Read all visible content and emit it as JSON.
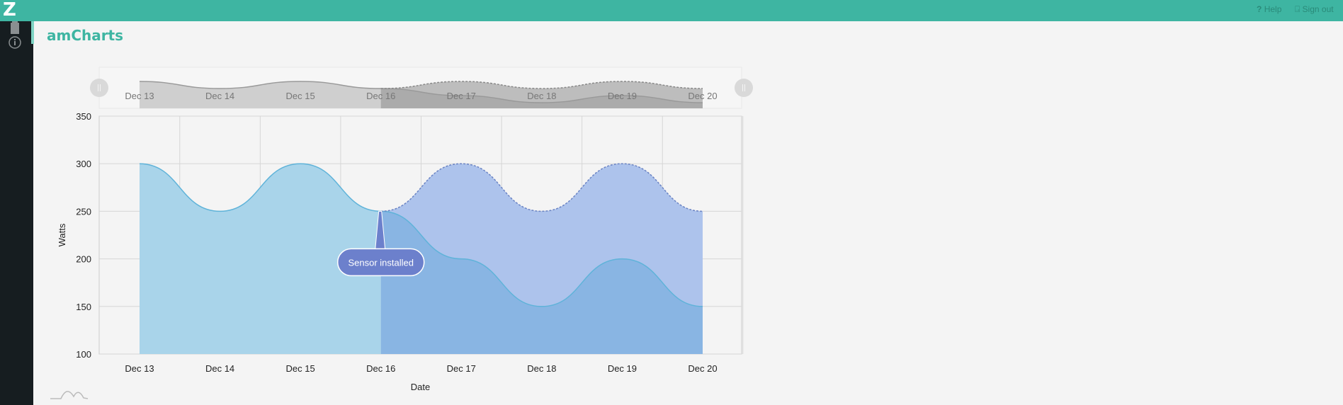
{
  "app": {
    "logo": "Z",
    "title": "amCharts",
    "help_label": "Help",
    "signout_label": "Sign out",
    "sidebar_icons": [
      "building-icon",
      "info-icon"
    ]
  },
  "colors": {
    "topbar": "#3eb5a2",
    "series_before": "#a9d4ea",
    "series_after": "#89b5e3",
    "dashed_series": "#adc3ec",
    "balloon": "#6c80cc"
  },
  "chart_data": {
    "type": "area",
    "xlabel": "Date",
    "ylabel": "Watts",
    "categories": [
      "Dec 13",
      "Dec 14",
      "Dec 15",
      "Dec 16",
      "Dec 17",
      "Dec 18",
      "Dec 19",
      "Dec 20"
    ],
    "ylim": [
      100,
      350
    ],
    "yticks": [
      100,
      150,
      200,
      250,
      300,
      350
    ],
    "grid": true,
    "smoothed": true,
    "series": [
      {
        "values": [
          300,
          250,
          300,
          250,
          200,
          150,
          200,
          150
        ],
        "style": "solid"
      },
      {
        "values": [
          null,
          null,
          null,
          250,
          300,
          250,
          300,
          250
        ],
        "style": "dashed"
      }
    ],
    "annotation": {
      "category": "Dec 16",
      "value": 250,
      "text": "Sensor installed"
    },
    "scrollbar": {
      "visible": true,
      "range": [
        "Dec 13",
        "Dec 20"
      ]
    }
  }
}
